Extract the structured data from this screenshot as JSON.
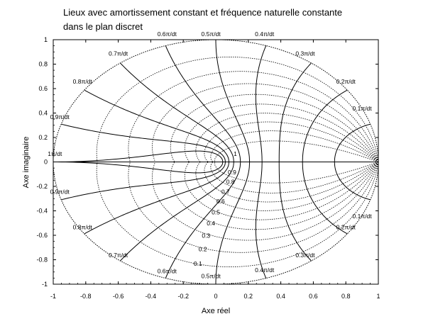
{
  "chart_data": {
    "type": "line",
    "title_lines": [
      "Lieux avec amortissement constant et fréquence naturelle constante",
      "dans le plan discret"
    ],
    "xlabel": "Axe réel",
    "ylabel": "Axe imaginaire",
    "xlim": [
      -1,
      1
    ],
    "ylim": [
      -1,
      1
    ],
    "x_ticks": [
      -1,
      -0.8,
      -0.6,
      -0.4,
      -0.2,
      0,
      0.2,
      0.4,
      0.6,
      0.8,
      1
    ],
    "y_ticks": [
      -1,
      -0.8,
      -0.6,
      -0.4,
      -0.2,
      0,
      0.2,
      0.4,
      0.6,
      0.8,
      1
    ],
    "grid": false,
    "damping_values": [
      0,
      0.1,
      0.2,
      0.3,
      0.4,
      0.5,
      0.6,
      0.7,
      0.8,
      0.9,
      1
    ],
    "natural_frequency_values": [
      0.1,
      0.2,
      0.3,
      0.4,
      0.5,
      0.6,
      0.7,
      0.8,
      0.9,
      1.0
    ],
    "freq_labels_upper": [
      {
        "text": "0.1π/dt",
        "x": 0.9,
        "y": 0.42
      },
      {
        "text": "0.2π/dt",
        "x": 0.8,
        "y": 0.64
      },
      {
        "text": "0.3π/dt",
        "x": 0.55,
        "y": 0.87
      },
      {
        "text": "0.4π/dt",
        "x": 0.3,
        "y": 1.03
      },
      {
        "text": "0.5π/dt",
        "x": -0.03,
        "y": 1.03
      },
      {
        "text": "0.6π/dt",
        "x": -0.3,
        "y": 1.03
      },
      {
        "text": "0.7π/dt",
        "x": -0.6,
        "y": 0.87
      },
      {
        "text": "0.8π/dt",
        "x": -0.82,
        "y": 0.64
      },
      {
        "text": "0.9π/dt",
        "x": -0.96,
        "y": 0.35
      },
      {
        "text": "1π/dt",
        "x": -0.99,
        "y": 0.05
      }
    ],
    "freq_labels_lower": [
      {
        "text": "0.1π/dt",
        "x": 0.9,
        "y": -0.46
      },
      {
        "text": "0.2π/dt",
        "x": 0.8,
        "y": -0.55
      },
      {
        "text": "0.3π/dt",
        "x": 0.55,
        "y": -0.78
      },
      {
        "text": "0.4π/dt",
        "x": 0.3,
        "y": -0.9
      },
      {
        "text": "0.5π/dt",
        "x": -0.03,
        "y": -0.95
      },
      {
        "text": "0.6π/dt",
        "x": -0.3,
        "y": -0.91
      },
      {
        "text": "0.7π/dt",
        "x": -0.6,
        "y": -0.78
      },
      {
        "text": "0.8π/dt",
        "x": -0.82,
        "y": -0.55
      },
      {
        "text": "0.9π/dt",
        "x": -0.96,
        "y": -0.26
      }
    ],
    "damping_labels": [
      {
        "text": "1",
        "x": 0.12,
        "y": 0.05
      },
      {
        "text": "0.9",
        "x": 0.1,
        "y": -0.1
      },
      {
        "text": "0.8",
        "x": 0.09,
        "y": -0.18
      },
      {
        "text": "0.7",
        "x": 0.06,
        "y": -0.26
      },
      {
        "text": "0.6",
        "x": 0.03,
        "y": -0.34
      },
      {
        "text": "0.5",
        "x": 0.0,
        "y": -0.43
      },
      {
        "text": "0.4",
        "x": -0.03,
        "y": -0.52
      },
      {
        "text": "0.3",
        "x": -0.06,
        "y": -0.62
      },
      {
        "text": "0.2",
        "x": -0.08,
        "y": -0.73
      },
      {
        "text": "0.1",
        "x": -0.11,
        "y": -0.85
      }
    ]
  }
}
